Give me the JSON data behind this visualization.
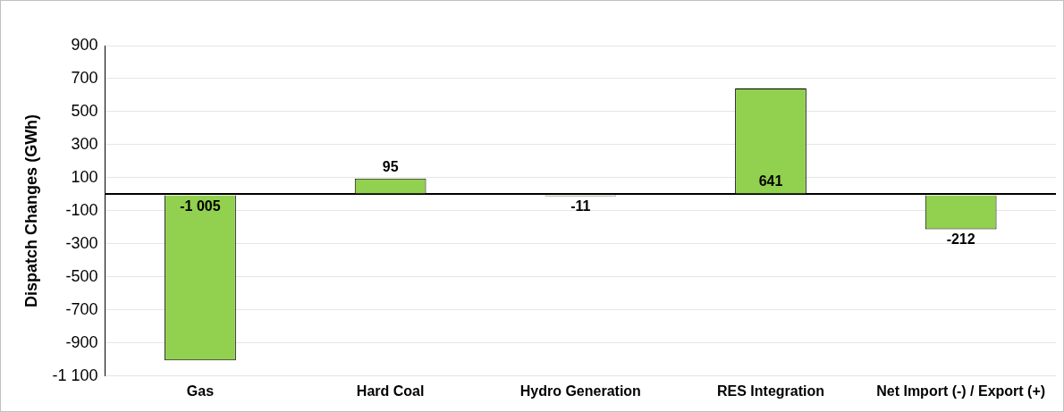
{
  "chart_data": {
    "type": "bar",
    "ylabel": "Dispatch Changes (GWh)",
    "categories": [
      "Gas",
      "Hard Coal",
      "Hydro Generation",
      "RES Integration",
      "Net Import (-) / Export (+)"
    ],
    "values": [
      -1005,
      95,
      -11,
      641,
      -212
    ],
    "value_labels": [
      "-1 005",
      "95",
      "-11",
      "641",
      "-212"
    ],
    "color": "#92d050",
    "ylim": [
      -1100,
      900
    ],
    "yticks": [
      {
        "value": -1100,
        "label": "-1 100"
      },
      -900,
      -700,
      -500,
      -300,
      -100,
      100,
      300,
      500,
      700,
      900
    ],
    "grid": "y",
    "legend": false
  }
}
